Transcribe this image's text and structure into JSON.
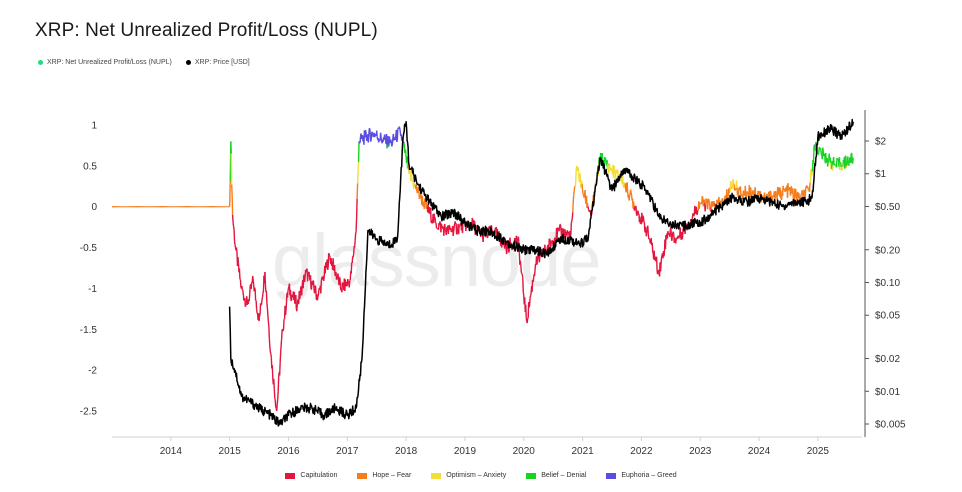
{
  "title": "XRP: Net Unrealized Profit/Loss (NUPL)",
  "watermark": "glassnode",
  "colors": {
    "capitulation": "#e3163f",
    "hope_fear": "#f57d1c",
    "optimism_anxiety": "#f3dd3a",
    "belief_denial": "#16d420",
    "euphoria_greed": "#5a4de0",
    "nupl_legend": "#19e07c",
    "price": "#000000",
    "axis": "#d0d0d0",
    "tick_text": "#333333"
  },
  "top_legend": [
    {
      "label": "XRP: Net Unrealized Profit/Loss (NUPL)",
      "color": "#19e07c"
    },
    {
      "label": "XRP: Price [USD]",
      "color": "#000000"
    }
  ],
  "bottom_legend": [
    {
      "label": "Capitulation",
      "color": "#e3163f"
    },
    {
      "label": "Hope – Fear",
      "color": "#f57d1c"
    },
    {
      "label": "Optimism – Anxiety",
      "color": "#f3dd3a"
    },
    {
      "label": "Belief – Denial",
      "color": "#16d420"
    },
    {
      "label": "Euphoria – Greed",
      "color": "#5a4de0"
    }
  ],
  "chart_data": {
    "type": "line",
    "title": "XRP: Net Unrealized Profit/Loss (NUPL)",
    "x_ticks": [
      "2014",
      "2015",
      "2016",
      "2017",
      "2018",
      "2019",
      "2020",
      "2021",
      "2022",
      "2023",
      "2024",
      "2025"
    ],
    "xlim": [
      2013.0,
      2025.75
    ],
    "y_left": {
      "label": "",
      "ticks": [
        "1",
        "0.5",
        "0",
        "-0.5",
        "-1",
        "-1.5",
        "-2",
        "-2.5"
      ],
      "ylim": [
        -2.8,
        1.15
      ]
    },
    "y_right": {
      "label": "",
      "scale": "log",
      "ticks": [
        "$2",
        "$1",
        "$0.50",
        "$0.20",
        "$0.10",
        "$0.05",
        "$0.02",
        "$0.01",
        "$0.005"
      ],
      "ylim": [
        0.0045,
        3.5
      ]
    },
    "grid": false,
    "series": [
      {
        "name": "XRP: Net Unrealized Profit/Loss (NUPL)",
        "axis": "left",
        "zones": [
          {
            "label": "Capitulation",
            "range": [
              -10,
              0
            ]
          },
          {
            "label": "Hope – Fear",
            "range": [
              0,
              0.25
            ]
          },
          {
            "label": "Optimism – Anxiety",
            "range": [
              0.25,
              0.5
            ]
          },
          {
            "label": "Belief – Denial",
            "range": [
              0.5,
              0.75
            ]
          },
          {
            "label": "Euphoria – Greed",
            "range": [
              0.75,
              10
            ]
          }
        ],
        "x": [
          2013.0,
          2015.0,
          2015.02,
          2015.05,
          2015.1,
          2015.2,
          2015.3,
          2015.4,
          2015.5,
          2015.6,
          2015.7,
          2015.8,
          2015.9,
          2016.0,
          2016.15,
          2016.3,
          2016.5,
          2016.7,
          2016.9,
          2017.05,
          2017.15,
          2017.2,
          2017.3,
          2017.45,
          2017.6,
          2017.75,
          2017.9,
          2018.0,
          2018.05,
          2018.15,
          2018.3,
          2018.5,
          2018.7,
          2018.9,
          2019.1,
          2019.3,
          2019.5,
          2019.7,
          2019.9,
          2020.05,
          2020.2,
          2020.4,
          2020.6,
          2020.8,
          2020.9,
          2021.0,
          2021.15,
          2021.3,
          2021.5,
          2021.7,
          2021.9,
          2022.1,
          2022.3,
          2022.45,
          2022.6,
          2022.8,
          2023.0,
          2023.2,
          2023.4,
          2023.55,
          2023.7,
          2023.9,
          2024.1,
          2024.3,
          2024.5,
          2024.7,
          2024.85,
          2024.95,
          2025.1,
          2025.3,
          2025.5,
          2025.6
        ],
        "values": [
          0,
          0,
          0.8,
          -0.1,
          -0.5,
          -1.0,
          -1.2,
          -0.9,
          -1.4,
          -0.8,
          -1.8,
          -2.5,
          -1.5,
          -1.0,
          -1.2,
          -0.8,
          -1.1,
          -0.6,
          -1.0,
          -0.9,
          -0.3,
          0.8,
          0.85,
          0.9,
          0.82,
          0.78,
          0.92,
          0.6,
          0.4,
          0.25,
          0.05,
          -0.2,
          -0.3,
          -0.25,
          -0.2,
          -0.35,
          -0.3,
          -0.5,
          -0.4,
          -1.4,
          -0.7,
          -0.5,
          -0.3,
          -0.35,
          0.5,
          0.2,
          -0.1,
          0.6,
          0.45,
          0.3,
          0.0,
          -0.3,
          -0.8,
          -0.3,
          -0.4,
          -0.2,
          0.05,
          0.0,
          0.05,
          0.3,
          0.15,
          0.2,
          0.1,
          0.15,
          0.2,
          0.1,
          0.2,
          0.75,
          0.62,
          0.5,
          0.55,
          0.6
        ]
      },
      {
        "name": "XRP: Price [USD]",
        "axis": "right",
        "x": [
          2015.0,
          2015.02,
          2015.1,
          2015.2,
          2015.35,
          2015.5,
          2015.7,
          2015.85,
          2016.0,
          2016.2,
          2016.4,
          2016.6,
          2016.8,
          2017.0,
          2017.15,
          2017.25,
          2017.35,
          2017.5,
          2017.7,
          2017.85,
          2017.95,
          2018.0,
          2018.05,
          2018.2,
          2018.4,
          2018.6,
          2018.8,
          2019.0,
          2019.2,
          2019.4,
          2019.6,
          2019.8,
          2020.0,
          2020.2,
          2020.4,
          2020.6,
          2020.8,
          2020.95,
          2021.1,
          2021.3,
          2021.5,
          2021.7,
          2021.9,
          2022.1,
          2022.3,
          2022.5,
          2022.7,
          2022.9,
          2023.1,
          2023.3,
          2023.55,
          2023.8,
          2024.0,
          2024.2,
          2024.4,
          2024.6,
          2024.8,
          2024.9,
          2025.0,
          2025.2,
          2025.4,
          2025.6
        ],
        "values": [
          0.06,
          0.02,
          0.015,
          0.009,
          0.008,
          0.007,
          0.006,
          0.005,
          0.006,
          0.007,
          0.007,
          0.006,
          0.007,
          0.006,
          0.007,
          0.02,
          0.3,
          0.25,
          0.22,
          0.25,
          2.2,
          3.0,
          1.2,
          0.8,
          0.55,
          0.4,
          0.45,
          0.35,
          0.3,
          0.3,
          0.26,
          0.22,
          0.2,
          0.2,
          0.18,
          0.25,
          0.25,
          0.22,
          0.27,
          1.4,
          0.7,
          1.1,
          0.9,
          0.7,
          0.4,
          0.35,
          0.33,
          0.35,
          0.38,
          0.48,
          0.6,
          0.55,
          0.6,
          0.55,
          0.5,
          0.55,
          0.55,
          0.6,
          2.2,
          2.6,
          2.2,
          3.0
        ]
      }
    ]
  }
}
